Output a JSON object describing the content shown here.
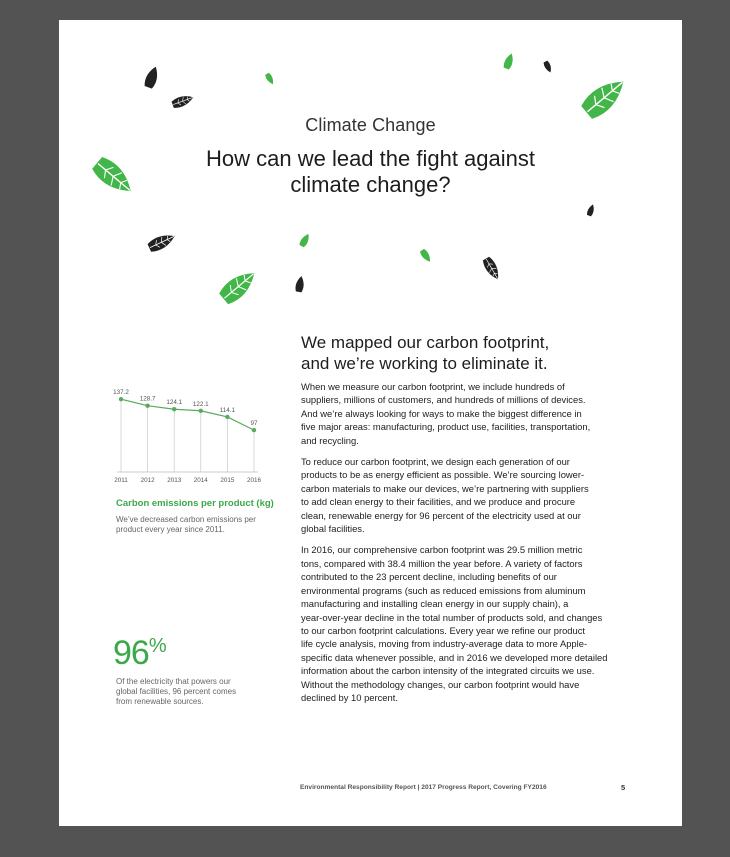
{
  "section_label": "Climate Change",
  "headline": [
    "How can we lead the fight against",
    "climate change?"
  ],
  "subhead": [
    "We mapped our carbon footprint,",
    "and we’re working to eliminate it."
  ],
  "paragraphs": [
    [
      "When we measure our carbon footprint, we include hundreds of",
      "suppliers, millions of customers, and hundreds of millions of devices.",
      "And we’re always looking for ways to make the biggest difference in",
      "five major areas: manufacturing, product use, facilities, transportation,",
      "and recycling."
    ],
    [
      "To reduce our carbon footprint, we design each generation of our",
      "products to be as energy efficient as possible. We’re sourcing lower-",
      "carbon materials to make our devices, we’re partnering with suppliers",
      "to add clean energy to their facilities, and we produce and procure",
      "clean, renewable energy for 96 percent of the electricity used at our",
      "global facilities."
    ],
    [
      "In 2016, our comprehensive carbon footprint was 29.5 million metric",
      "tons, compared with 38.4 million the year before. A variety of factors",
      "contributed to the 23 percent decline, including benefits of our",
      "environmental programs (such as reduced emissions from aluminum",
      "manufacturing and installing clean energy in our supply chain), a",
      "year-over-year decline in the total number of products sold, and changes",
      "to our carbon footprint calculations. Every year we refine our product",
      "life cycle analysis, moving from industry-average data to more Apple-",
      "specific data whenever possible, and in 2016 we developed more detailed",
      "information about the carbon intensity of the integrated circuits we use.",
      "Without the methodology changes, our carbon footprint would have",
      "declined by 10 percent."
    ]
  ],
  "chart_data": {
    "type": "line",
    "x": [
      "2011",
      "2012",
      "2013",
      "2014",
      "2015",
      "2016"
    ],
    "values": [
      137.2,
      128.7,
      124.1,
      122.1,
      114.1,
      97
    ],
    "value_labels": [
      "137.2",
      "128.7",
      "124.1",
      "122.1",
      "114.1",
      "97"
    ],
    "title": "Carbon emissions per product (kg)",
    "caption": [
      "We’ve decreased carbon emissions per",
      "product every year since 2011."
    ],
    "ylim": [
      40,
      140
    ],
    "grid": "vertical",
    "line_color": "#5aaa5e"
  },
  "stat": {
    "value": "96",
    "unit": "%",
    "caption": [
      "Of the electricity that powers our",
      "global facilities, 96 percent comes",
      "from renewable sources."
    ]
  },
  "footer": {
    "text": "Environmental Responsibility Report  |  2017 Progress Report, Covering FY2016",
    "page_number": "5"
  },
  "colors": {
    "accent_green": "#3ba84a",
    "leaf_green": "#43b649",
    "leaf_dark": "#222222",
    "background": "#535353"
  },
  "decoration": {
    "icon": "leaf-icon",
    "count": 14
  }
}
